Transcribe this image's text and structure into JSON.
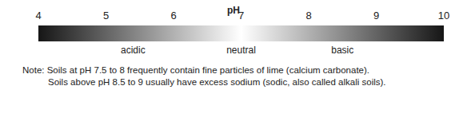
{
  "chart_data": {
    "type": "gradient_scale",
    "title": "pH",
    "xlim": [
      4,
      10
    ],
    "xticks": [
      4,
      5,
      6,
      7,
      8,
      9,
      10
    ],
    "colors": [
      "#161616",
      "#ffffff",
      "#161616"
    ],
    "annotations": [
      {
        "text": "acidic",
        "x": 5.4
      },
      {
        "text": "neutral",
        "x": 7
      },
      {
        "text": "basic",
        "x": 8.5
      }
    ],
    "note": [
      "Note: Soils at pH 7.5 to 8 frequently contain fine particles of lime (calcium carbonate).",
      "Soils above pH 8.5 to 9 usually have excess sodium (sodic, also called alkali soils)."
    ]
  }
}
